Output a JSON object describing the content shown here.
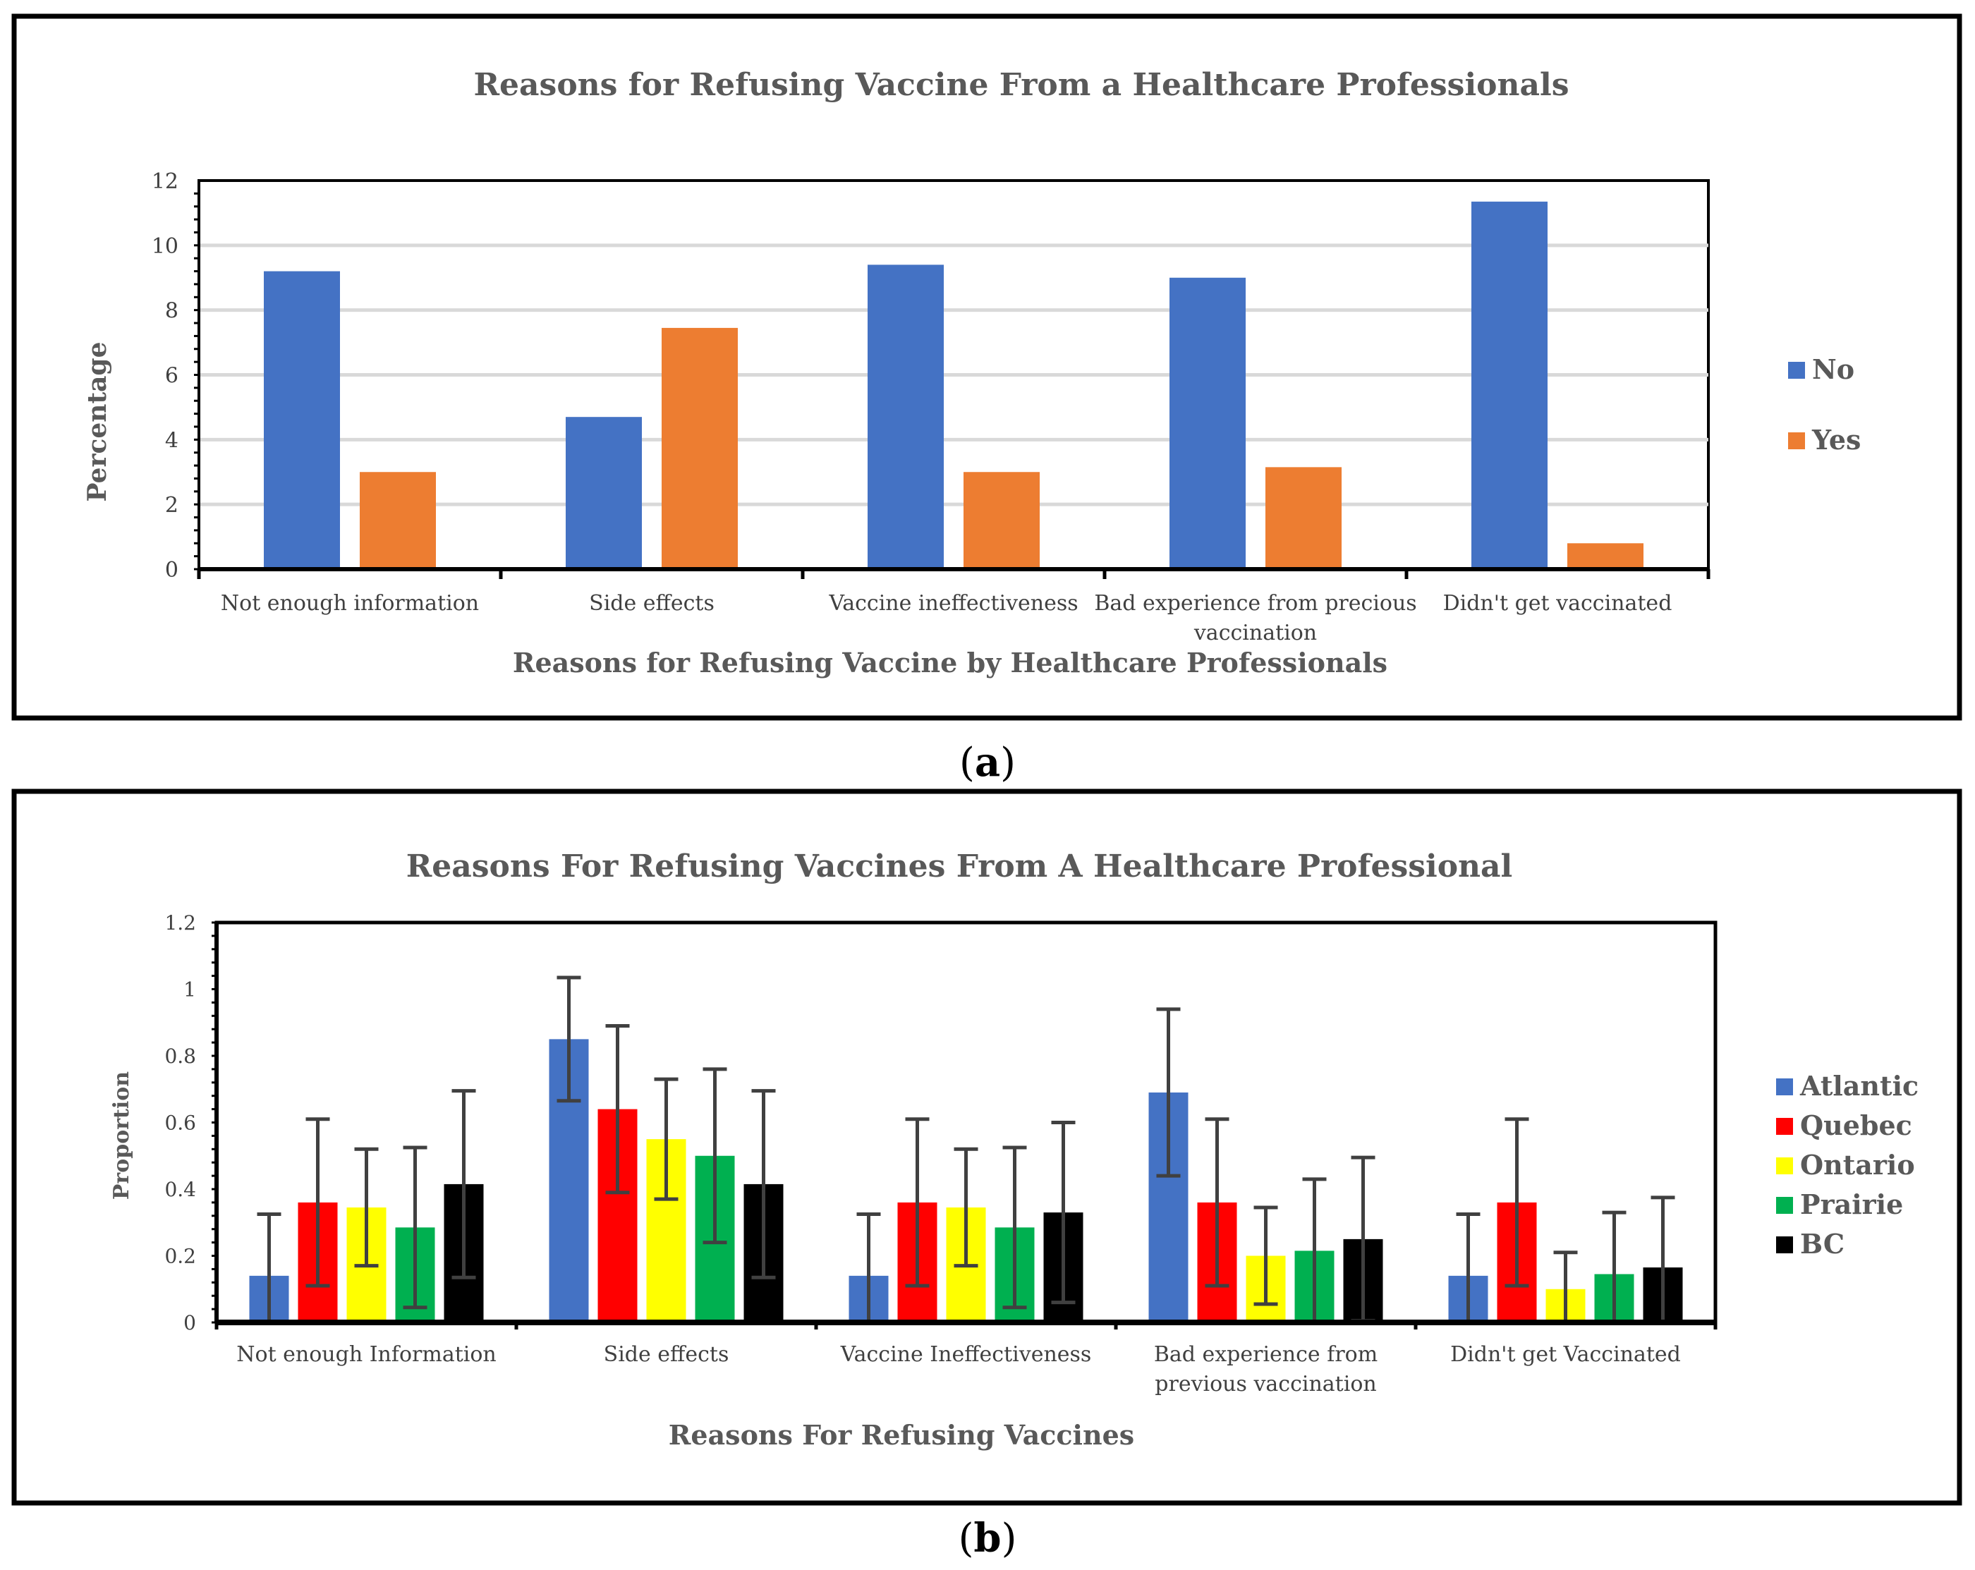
{
  "chart_data": [
    {
      "type": "bar",
      "title": "Reasons for Refusing Vaccine From a Healthcare Professionals",
      "xlabel": "Reasons for Refusing Vaccine by Healthcare Professionals",
      "ylabel": "Percentage",
      "ylim": [
        0,
        12
      ],
      "yticks": [
        0,
        2,
        4,
        6,
        8,
        10,
        12
      ],
      "grid": true,
      "legend_position": "right",
      "categories": [
        [
          "Not enough information"
        ],
        [
          "Side effects"
        ],
        [
          "Vaccine ineffectiveness"
        ],
        [
          "Bad experience from precious",
          "vaccination"
        ],
        [
          "Didn't get vaccinated"
        ]
      ],
      "series": [
        {
          "name": "No",
          "color": "#4472C4",
          "values": [
            9.2,
            4.7,
            9.4,
            9.0,
            11.35
          ]
        },
        {
          "name": "Yes",
          "color": "#ED7D31",
          "values": [
            3.0,
            7.45,
            3.0,
            3.15,
            0.8
          ]
        }
      ],
      "panel_label": "(a)"
    },
    {
      "type": "bar",
      "title": "Reasons For Refusing Vaccines From A Healthcare Professional",
      "xlabel": "Reasons For Refusing Vaccines",
      "ylabel": "Proportion",
      "ylim": [
        0,
        1.2
      ],
      "yticks": [
        "0",
        "0.2",
        "0.4",
        "0.6",
        "0.8",
        "1",
        "1.2"
      ],
      "grid": false,
      "legend_position": "right",
      "categories": [
        [
          "Not enough Information"
        ],
        [
          "Side effects"
        ],
        [
          "Vaccine Ineffectiveness"
        ],
        [
          "Bad experience from",
          "previous vaccination"
        ],
        [
          "Didn't get Vaccinated"
        ]
      ],
      "series": [
        {
          "name": "Atlantic",
          "color": "#4472C4",
          "values": [
            0.14,
            0.85,
            0.14,
            0.69,
            0.14
          ],
          "error": [
            0.185,
            0.185,
            0.185,
            0.25,
            0.185
          ]
        },
        {
          "name": "Quebec",
          "color": "#FF0000",
          "values": [
            0.36,
            0.64,
            0.36,
            0.36,
            0.36
          ],
          "error": [
            0.25,
            0.25,
            0.25,
            0.25,
            0.25
          ]
        },
        {
          "name": "Ontario",
          "color": "#FFFF00",
          "values": [
            0.345,
            0.55,
            0.345,
            0.2,
            0.1
          ],
          "error": [
            0.175,
            0.18,
            0.175,
            0.145,
            0.11
          ]
        },
        {
          "name": "Prairie",
          "color": "#00B050",
          "values": [
            0.285,
            0.5,
            0.285,
            0.215,
            0.145
          ],
          "error": [
            0.24,
            0.26,
            0.24,
            0.215,
            0.185
          ]
        },
        {
          "name": "BC",
          "color": "#000000",
          "values": [
            0.415,
            0.415,
            0.33,
            0.25,
            0.165
          ],
          "error": [
            0.28,
            0.28,
            0.27,
            0.245,
            0.21
          ]
        }
      ],
      "panel_label": "(b)"
    }
  ]
}
